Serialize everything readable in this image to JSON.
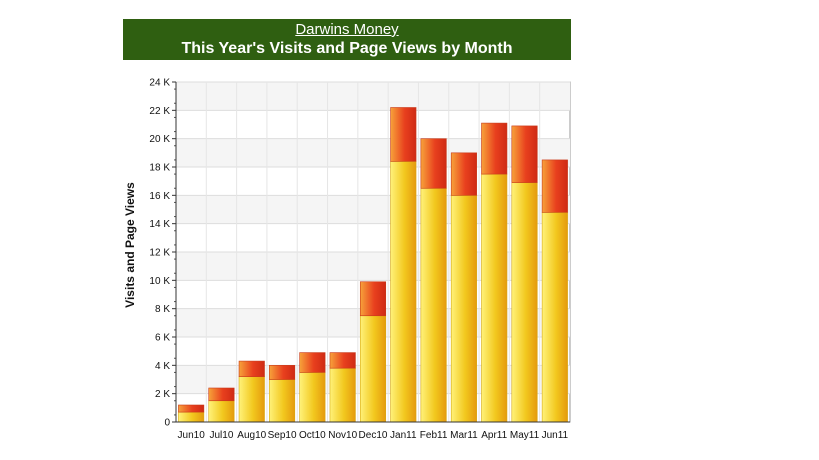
{
  "header": {
    "site_name": "Darwins Money",
    "title": "This Year's Visits and Page Views by Month",
    "background": "#2f5f11"
  },
  "chart_data": {
    "type": "bar",
    "stacked": true,
    "title": "This Year's Visits and Page Views by Month",
    "xlabel": "",
    "ylabel": "Visits and Page Views",
    "ylim": [
      0,
      24000
    ],
    "grid": true,
    "categories": [
      "Jun10",
      "Jul10",
      "Aug10",
      "Sep10",
      "Oct10",
      "Nov10",
      "Dec10",
      "Jan11",
      "Feb11",
      "Mar11",
      "Apr11",
      "May11",
      "Jun11"
    ],
    "series": [
      {
        "color": "#f2c81e",
        "values": [
          700,
          1500,
          3200,
          3000,
          3500,
          3800,
          7500,
          18400,
          16500,
          16000,
          17500,
          16900,
          14800
        ]
      },
      {
        "color": "#e8401e",
        "values": [
          500,
          900,
          1100,
          1000,
          1400,
          1100,
          2400,
          3800,
          3500,
          3000,
          3600,
          4000,
          3700
        ]
      }
    ],
    "y_ticks": [
      {
        "value": 0,
        "label": "0"
      },
      {
        "value": 2000,
        "label": "2 K"
      },
      {
        "value": 4000,
        "label": "4 K"
      },
      {
        "value": 6000,
        "label": "6 K"
      },
      {
        "value": 8000,
        "label": "8 K"
      },
      {
        "value": 10000,
        "label": "10 K"
      },
      {
        "value": 12000,
        "label": "12 K"
      },
      {
        "value": 14000,
        "label": "14 K"
      },
      {
        "value": 16000,
        "label": "16 K"
      },
      {
        "value": 18000,
        "label": "18 K"
      },
      {
        "value": 20000,
        "label": "20 K"
      },
      {
        "value": 22000,
        "label": "22 K"
      },
      {
        "value": 24000,
        "label": "24 K"
      }
    ]
  }
}
